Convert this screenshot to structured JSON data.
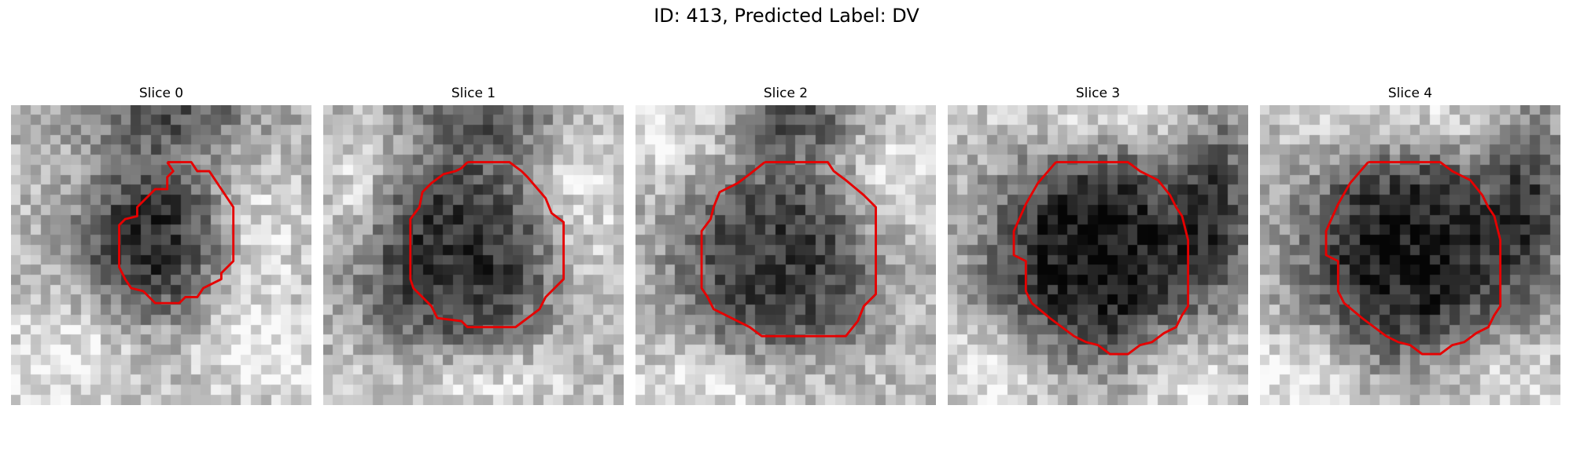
{
  "figure": {
    "title": "ID: 413, Predicted Label: DV",
    "contour_color": "#e60000",
    "colormap": "gray"
  },
  "panels": [
    {
      "title": "Slice 0",
      "dark_center": [
        0.48,
        0.45
      ],
      "dark_radius": 0.26,
      "dark_strength": 0.55,
      "bright_regions": [
        [
          0.78,
          0.45,
          0.22,
          0.35
        ],
        [
          0.15,
          0.85,
          0.3,
          0.25
        ],
        [
          0.85,
          0.85,
          0.25,
          0.2
        ]
      ],
      "top_dark_band": [
        0.55,
        0.03,
        0.35,
        0.18
      ],
      "contour": [
        [
          0.52,
          0.19
        ],
        [
          0.6,
          0.19
        ],
        [
          0.62,
          0.22
        ],
        [
          0.66,
          0.22
        ],
        [
          0.7,
          0.28
        ],
        [
          0.74,
          0.34
        ],
        [
          0.74,
          0.52
        ],
        [
          0.7,
          0.56
        ],
        [
          0.7,
          0.58
        ],
        [
          0.66,
          0.6
        ],
        [
          0.64,
          0.61
        ],
        [
          0.62,
          0.64
        ],
        [
          0.58,
          0.64
        ],
        [
          0.56,
          0.66
        ],
        [
          0.48,
          0.66
        ],
        [
          0.44,
          0.62
        ],
        [
          0.4,
          0.61
        ],
        [
          0.38,
          0.58
        ],
        [
          0.36,
          0.54
        ],
        [
          0.36,
          0.4
        ],
        [
          0.38,
          0.38
        ],
        [
          0.42,
          0.37
        ],
        [
          0.42,
          0.34
        ],
        [
          0.44,
          0.32
        ],
        [
          0.48,
          0.28
        ],
        [
          0.52,
          0.28
        ],
        [
          0.52,
          0.24
        ],
        [
          0.54,
          0.22
        ],
        [
          0.52,
          0.19
        ]
      ]
    },
    {
      "title": "Slice 1",
      "dark_center": [
        0.45,
        0.5
      ],
      "dark_radius": 0.33,
      "dark_strength": 0.55,
      "bright_regions": [
        [
          0.85,
          0.3,
          0.2,
          0.35
        ],
        [
          0.12,
          0.3,
          0.15,
          0.25
        ],
        [
          0.5,
          0.92,
          0.4,
          0.15
        ]
      ],
      "top_dark_band": [
        0.55,
        0.03,
        0.3,
        0.18
      ],
      "contour": [
        [
          0.48,
          0.19
        ],
        [
          0.62,
          0.19
        ],
        [
          0.66,
          0.22
        ],
        [
          0.68,
          0.24
        ],
        [
          0.74,
          0.31
        ],
        [
          0.76,
          0.36
        ],
        [
          0.8,
          0.39
        ],
        [
          0.8,
          0.58
        ],
        [
          0.74,
          0.64
        ],
        [
          0.72,
          0.68
        ],
        [
          0.68,
          0.71
        ],
        [
          0.64,
          0.74
        ],
        [
          0.48,
          0.74
        ],
        [
          0.46,
          0.72
        ],
        [
          0.38,
          0.71
        ],
        [
          0.36,
          0.67
        ],
        [
          0.3,
          0.61
        ],
        [
          0.29,
          0.58
        ],
        [
          0.29,
          0.38
        ],
        [
          0.32,
          0.34
        ],
        [
          0.33,
          0.29
        ],
        [
          0.36,
          0.26
        ],
        [
          0.4,
          0.23
        ],
        [
          0.44,
          0.22
        ],
        [
          0.46,
          0.21
        ],
        [
          0.48,
          0.19
        ]
      ]
    },
    {
      "title": "Slice 2",
      "dark_center": [
        0.48,
        0.52
      ],
      "dark_radius": 0.34,
      "dark_strength": 0.5,
      "bright_regions": [
        [
          0.85,
          0.25,
          0.2,
          0.3
        ],
        [
          0.3,
          0.92,
          0.45,
          0.15
        ],
        [
          0.1,
          0.1,
          0.25,
          0.2
        ]
      ],
      "top_dark_band": [
        0.55,
        0.05,
        0.25,
        0.12
      ],
      "contour": [
        [
          0.43,
          0.19
        ],
        [
          0.64,
          0.19
        ],
        [
          0.66,
          0.22
        ],
        [
          0.7,
          0.25
        ],
        [
          0.76,
          0.3
        ],
        [
          0.8,
          0.34
        ],
        [
          0.8,
          0.63
        ],
        [
          0.76,
          0.67
        ],
        [
          0.74,
          0.72
        ],
        [
          0.7,
          0.77
        ],
        [
          0.42,
          0.77
        ],
        [
          0.38,
          0.74
        ],
        [
          0.34,
          0.72
        ],
        [
          0.26,
          0.68
        ],
        [
          0.24,
          0.64
        ],
        [
          0.22,
          0.61
        ],
        [
          0.22,
          0.42
        ],
        [
          0.25,
          0.38
        ],
        [
          0.26,
          0.34
        ],
        [
          0.28,
          0.29
        ],
        [
          0.34,
          0.26
        ],
        [
          0.38,
          0.23
        ],
        [
          0.43,
          0.19
        ]
      ]
    },
    {
      "title": "Slice 3",
      "dark_center": [
        0.5,
        0.5
      ],
      "dark_radius": 0.36,
      "dark_strength": 0.65,
      "bright_regions": [
        [
          0.15,
          0.9,
          0.3,
          0.2
        ],
        [
          0.5,
          0.05,
          0.4,
          0.15
        ],
        [
          0.8,
          0.9,
          0.25,
          0.2
        ]
      ],
      "top_dark_band": [
        0.9,
        0.3,
        0.15,
        0.4
      ],
      "contour": [
        [
          0.36,
          0.19
        ],
        [
          0.6,
          0.19
        ],
        [
          0.64,
          0.22
        ],
        [
          0.7,
          0.25
        ],
        [
          0.74,
          0.3
        ],
        [
          0.76,
          0.34
        ],
        [
          0.78,
          0.37
        ],
        [
          0.8,
          0.45
        ],
        [
          0.8,
          0.67
        ],
        [
          0.78,
          0.7
        ],
        [
          0.76,
          0.74
        ],
        [
          0.72,
          0.76
        ],
        [
          0.68,
          0.79
        ],
        [
          0.64,
          0.8
        ],
        [
          0.6,
          0.83
        ],
        [
          0.54,
          0.83
        ],
        [
          0.5,
          0.8
        ],
        [
          0.46,
          0.79
        ],
        [
          0.42,
          0.77
        ],
        [
          0.34,
          0.71
        ],
        [
          0.28,
          0.66
        ],
        [
          0.26,
          0.62
        ],
        [
          0.26,
          0.52
        ],
        [
          0.22,
          0.5
        ],
        [
          0.22,
          0.42
        ],
        [
          0.26,
          0.33
        ],
        [
          0.3,
          0.26
        ],
        [
          0.36,
          0.19
        ]
      ]
    },
    {
      "title": "Slice 4",
      "dark_center": [
        0.5,
        0.5
      ],
      "dark_radius": 0.36,
      "dark_strength": 0.62,
      "bright_regions": [
        [
          0.12,
          0.9,
          0.3,
          0.2
        ],
        [
          0.5,
          0.05,
          0.4,
          0.15
        ],
        [
          0.8,
          0.9,
          0.25,
          0.2
        ]
      ],
      "top_dark_band": [
        0.9,
        0.3,
        0.15,
        0.4
      ],
      "contour": [
        [
          0.36,
          0.19
        ],
        [
          0.6,
          0.19
        ],
        [
          0.64,
          0.22
        ],
        [
          0.7,
          0.25
        ],
        [
          0.74,
          0.3
        ],
        [
          0.76,
          0.34
        ],
        [
          0.78,
          0.37
        ],
        [
          0.8,
          0.45
        ],
        [
          0.8,
          0.67
        ],
        [
          0.78,
          0.7
        ],
        [
          0.76,
          0.74
        ],
        [
          0.72,
          0.76
        ],
        [
          0.68,
          0.79
        ],
        [
          0.64,
          0.8
        ],
        [
          0.6,
          0.83
        ],
        [
          0.54,
          0.83
        ],
        [
          0.5,
          0.8
        ],
        [
          0.46,
          0.79
        ],
        [
          0.42,
          0.77
        ],
        [
          0.34,
          0.71
        ],
        [
          0.28,
          0.66
        ],
        [
          0.26,
          0.62
        ],
        [
          0.26,
          0.52
        ],
        [
          0.22,
          0.5
        ],
        [
          0.22,
          0.42
        ],
        [
          0.26,
          0.33
        ],
        [
          0.3,
          0.26
        ],
        [
          0.36,
          0.19
        ]
      ]
    }
  ]
}
